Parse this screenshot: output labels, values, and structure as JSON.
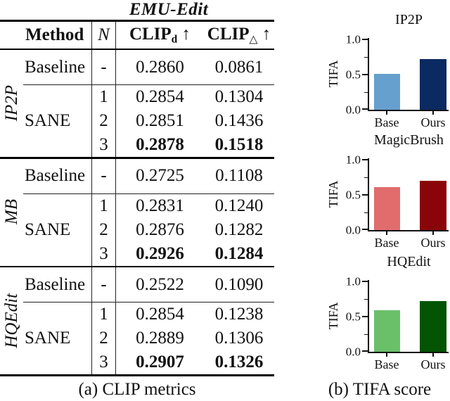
{
  "table": {
    "title": "EMU-Edit",
    "caption": "(a) CLIP metrics",
    "header": {
      "method": "Method",
      "n": "N",
      "clip_d_base": "CLIP",
      "clip_d_sub": "d",
      "clip_delta_base": "CLIP",
      "clip_delta_sub": "△",
      "arrow": "↑"
    },
    "sections": [
      {
        "group": "IP2P",
        "baseline": {
          "method": "Baseline",
          "n": "-",
          "clip_d": "0.2860",
          "clip_delta": "0.0861"
        },
        "sane": {
          "method": "SANE",
          "rows": [
            {
              "n": "1",
              "clip_d": "0.2854",
              "clip_delta": "0.1304"
            },
            {
              "n": "2",
              "clip_d": "0.2851",
              "clip_delta": "0.1436"
            },
            {
              "n": "3",
              "clip_d": "0.2878",
              "clip_delta": "0.1518"
            }
          ]
        }
      },
      {
        "group": "MB",
        "baseline": {
          "method": "Baseline",
          "n": "-",
          "clip_d": "0.2725",
          "clip_delta": "0.1108"
        },
        "sane": {
          "method": "SANE",
          "rows": [
            {
              "n": "1",
              "clip_d": "0.2831",
              "clip_delta": "0.1240"
            },
            {
              "n": "2",
              "clip_d": "0.2876",
              "clip_delta": "0.1282"
            },
            {
              "n": "3",
              "clip_d": "0.2926",
              "clip_delta": "0.1284"
            }
          ]
        }
      },
      {
        "group": "HQEdit",
        "baseline": {
          "method": "Baseline",
          "n": "-",
          "clip_d": "0.2522",
          "clip_delta": "0.1090"
        },
        "sane": {
          "method": "SANE",
          "rows": [
            {
              "n": "1",
              "clip_d": "0.2854",
              "clip_delta": "0.1238"
            },
            {
              "n": "2",
              "clip_d": "0.2889",
              "clip_delta": "0.1306"
            },
            {
              "n": "3",
              "clip_d": "0.2907",
              "clip_delta": "0.1326"
            }
          ]
        }
      }
    ]
  },
  "charts": {
    "caption": "(b) TIFA score",
    "ylabel": "TIFA",
    "yticks": [
      "1.0",
      "0.5",
      "0.0"
    ],
    "xlabels": [
      "Base",
      "Ours"
    ]
  },
  "chart_data": [
    {
      "type": "bar",
      "title": "IP2P",
      "ylabel": "TIFA",
      "categories": [
        "Base",
        "Ours"
      ],
      "values": [
        0.51,
        0.72
      ],
      "colors": [
        "#65a0ce",
        "#0a2a61"
      ],
      "ylim": [
        0.0,
        1.0
      ],
      "yticks": [
        0.0,
        0.5,
        1.0
      ],
      "grid": false,
      "legend": "none"
    },
    {
      "type": "bar",
      "title": "MagicBrush",
      "ylabel": "TIFA",
      "categories": [
        "Base",
        "Ours"
      ],
      "values": [
        0.61,
        0.7
      ],
      "colors": [
        "#e06c6c",
        "#8a0509"
      ],
      "ylim": [
        0.0,
        1.0
      ],
      "yticks": [
        0.0,
        0.5,
        1.0
      ],
      "grid": false,
      "legend": "none"
    },
    {
      "type": "bar",
      "title": "HQEdit",
      "ylabel": "TIFA",
      "categories": [
        "Base",
        "Ours"
      ],
      "values": [
        0.59,
        0.72
      ],
      "colors": [
        "#6abf69",
        "#035403"
      ],
      "ylim": [
        0.0,
        1.0
      ],
      "yticks": [
        0.0,
        0.5,
        1.0
      ],
      "grid": false,
      "legend": "none"
    }
  ]
}
